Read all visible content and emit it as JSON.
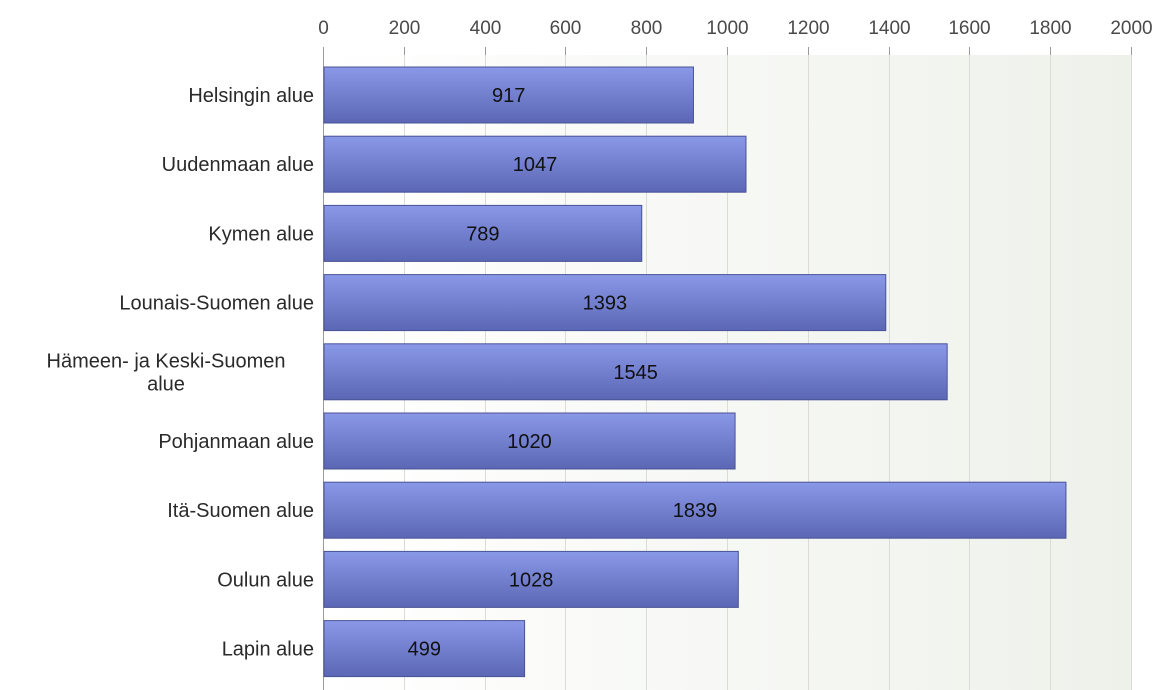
{
  "chart_data": {
    "type": "bar",
    "orientation": "horizontal",
    "categories": [
      "Helsingin alue",
      "Uudenmaan alue",
      "Kymen alue",
      "Lounais-Suomen alue",
      "Hämeen- ja Keski-Suomen alue",
      "Pohjanmaan alue",
      "Itä-Suomen alue",
      "Oulun alue",
      "Lapin alue"
    ],
    "category_label_lines": [
      [
        "Helsingin alue"
      ],
      [
        "Uudenmaan alue"
      ],
      [
        "Kymen alue"
      ],
      [
        "Lounais-Suomen alue"
      ],
      [
        "Hämeen- ja Keski-Suomen",
        "alue"
      ],
      [
        "Pohjanmaan alue"
      ],
      [
        "Itä-Suomen alue"
      ],
      [
        "Oulun alue"
      ],
      [
        "Lapin alue"
      ]
    ],
    "values": [
      917,
      1047,
      789,
      1393,
      1545,
      1020,
      1839,
      1028,
      499
    ],
    "data_labels": [
      "917",
      "1047",
      "789",
      "1393",
      "1545",
      "1020",
      "1839",
      "1028",
      "499"
    ],
    "xlim": [
      0,
      2000
    ],
    "x_ticks": [
      0,
      200,
      400,
      600,
      800,
      1000,
      1200,
      1400,
      1600,
      1800,
      2000
    ],
    "x_tick_labels": [
      "0",
      "200",
      "400",
      "600",
      "800",
      "1000",
      "1200",
      "1400",
      "1600",
      "1800",
      "2000"
    ],
    "x_axis_position": "top",
    "grid": true,
    "legend": "none",
    "title": "",
    "xlabel": "",
    "ylabel": "",
    "colors": {
      "bar_top": "#8a98e8",
      "bar_bottom": "#5b67b4",
      "bar_edge": "#4a5396",
      "plot_bg_left": "#ffffff",
      "plot_bg_right": "#eef1ea",
      "grid": "#dcdcd6",
      "axis": "#9a9a9a"
    }
  }
}
